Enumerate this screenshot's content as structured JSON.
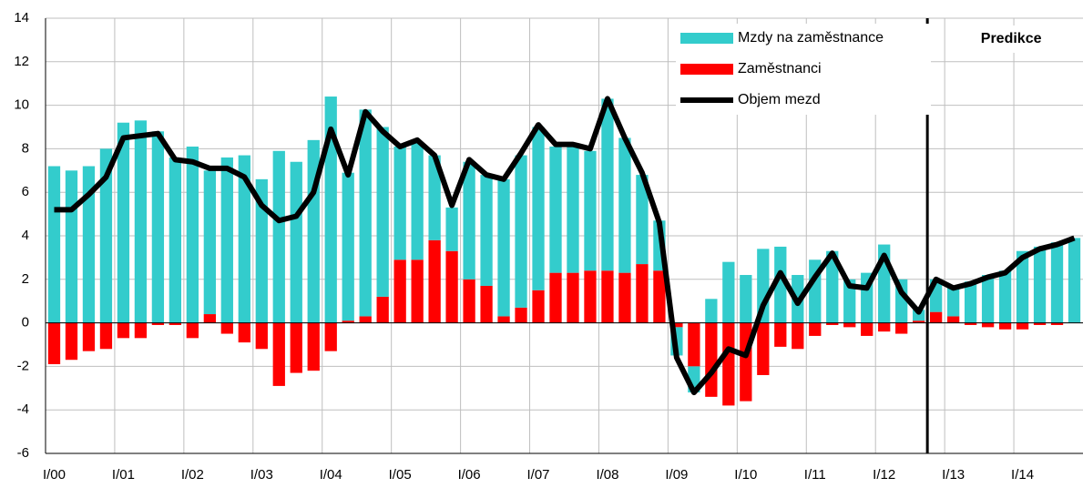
{
  "chart_data": {
    "type": "bar",
    "categories": [
      "I/00",
      null,
      null,
      null,
      "I/01",
      null,
      null,
      null,
      "I/02",
      null,
      null,
      null,
      "I/03",
      null,
      null,
      null,
      "I/04",
      null,
      null,
      null,
      "I/05",
      null,
      null,
      null,
      "I/06",
      null,
      null,
      null,
      "I/07",
      null,
      null,
      null,
      "I/08",
      null,
      null,
      null,
      "I/09",
      null,
      null,
      null,
      "I/10",
      null,
      null,
      null,
      "I/11",
      null,
      null,
      null,
      "I/12",
      null,
      null,
      null,
      "I/13",
      null,
      null,
      null,
      "I/14",
      null,
      null,
      null
    ],
    "series": [
      {
        "name": "Mzdy na zaměstnance",
        "color": "#33CCCC",
        "values": [
          7.2,
          7.0,
          7.2,
          8.0,
          9.2,
          9.3,
          8.8,
          7.6,
          8.1,
          6.6,
          7.6,
          7.7,
          6.6,
          7.9,
          7.4,
          8.4,
          10.4,
          6.8,
          9.5,
          7.8,
          5.2,
          5.4,
          3.9,
          2.0,
          5.4,
          5.1,
          6.3,
          7.0,
          7.5,
          5.8,
          5.8,
          5.5,
          7.9,
          6.2,
          4.1,
          2.3,
          -1.3,
          -1.2,
          1.1,
          2.8,
          2.2,
          3.4,
          3.5,
          2.2,
          2.9,
          3.3,
          2.0,
          2.3,
          3.6,
          2.0,
          0.5,
          1.5,
          1.4,
          1.9,
          2.2,
          2.4,
          3.3,
          3.5,
          3.7,
          3.9
        ]
      },
      {
        "name": "Zaměstnanci",
        "color": "#FF0000",
        "values": [
          -1.9,
          -1.7,
          -1.3,
          -1.2,
          -0.7,
          -0.7,
          -0.1,
          -0.1,
          -0.7,
          0.4,
          -0.5,
          -0.9,
          -1.2,
          -2.9,
          -2.3,
          -2.2,
          -1.3,
          0.1,
          0.3,
          1.2,
          2.9,
          2.9,
          3.8,
          3.3,
          2.0,
          1.7,
          0.3,
          0.7,
          1.5,
          2.3,
          2.3,
          2.4,
          2.4,
          2.3,
          2.7,
          2.4,
          -0.2,
          -2.0,
          -3.4,
          -3.8,
          -3.6,
          -2.4,
          -1.1,
          -1.2,
          -0.6,
          -0.1,
          -0.2,
          -0.6,
          -0.4,
          -0.5,
          0.1,
          0.5,
          0.3,
          -0.1,
          -0.2,
          -0.3,
          -0.3,
          -0.1,
          -0.1,
          0.0
        ]
      },
      {
        "name": "Objem mezd",
        "color": "#000000",
        "type": "line",
        "values": [
          5.2,
          5.2,
          5.9,
          6.7,
          8.5,
          8.6,
          8.7,
          7.5,
          7.4,
          7.1,
          7.1,
          6.7,
          5.4,
          4.7,
          4.9,
          6.0,
          8.9,
          6.8,
          9.7,
          8.8,
          8.1,
          8.4,
          7.7,
          5.4,
          7.5,
          6.8,
          6.6,
          7.8,
          9.1,
          8.2,
          8.2,
          8.0,
          10.3,
          8.5,
          6.9,
          4.6,
          -1.6,
          -3.2,
          -2.3,
          -1.2,
          -1.5,
          0.8,
          2.3,
          0.9,
          2.1,
          3.2,
          1.7,
          1.6,
          3.1,
          1.4,
          0.5,
          2.0,
          1.6,
          1.8,
          2.1,
          2.3,
          3.0,
          3.4,
          3.6,
          3.9
        ]
      }
    ],
    "annotation": "Predikce",
    "ylim": [
      -6,
      14
    ],
    "yticks": [
      -6,
      -4,
      -2,
      0,
      2,
      4,
      6,
      8,
      10,
      12,
      14
    ],
    "grid": true
  }
}
